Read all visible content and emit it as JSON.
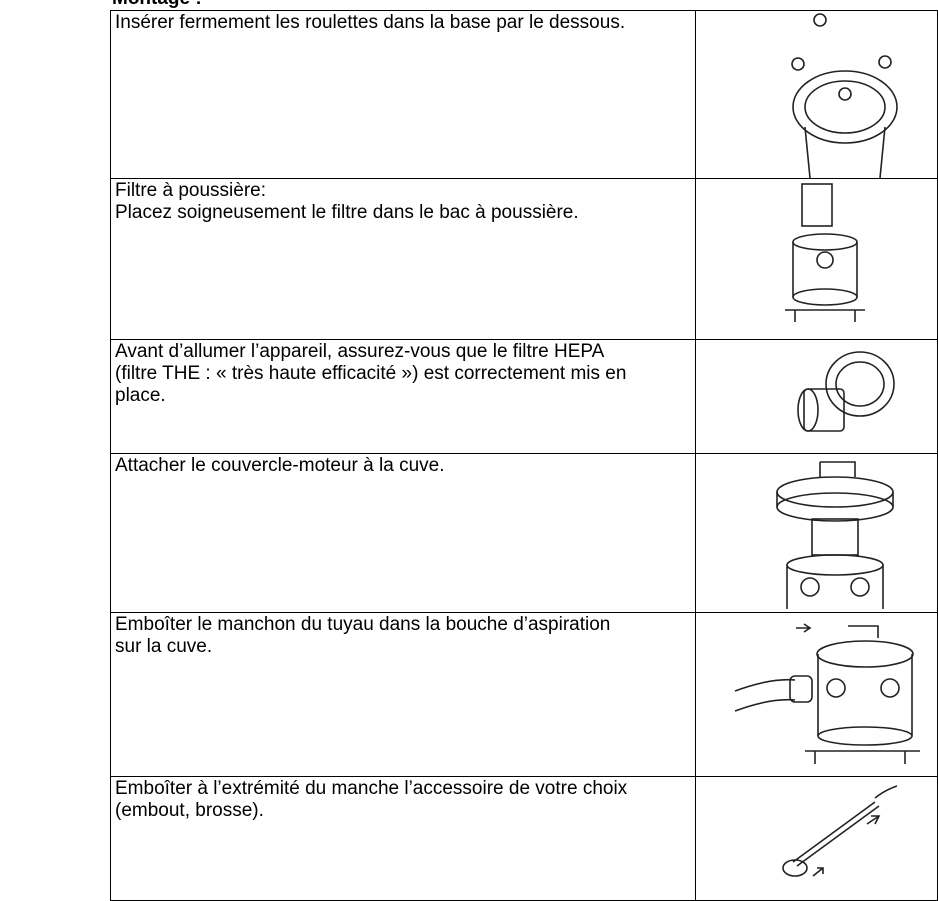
{
  "header": {
    "title": "Montage :"
  },
  "table": {
    "rows": [
      {
        "lines": [
          "Insérer fermement les roulettes dans la base par le dessous."
        ]
      },
      {
        "lines": [
          "Filtre à poussière:",
          "Placez soigneusement le filtre dans le bac à poussière."
        ]
      },
      {
        "lines": [
          "Avant d’allumer l’appareil, assurez-vous que le filtre HEPA",
          "(filtre THE : « très haute efficacité ») est correctement mis en",
          "place."
        ]
      },
      {
        "lines": [
          "Attacher le couvercle-moteur à la cuve."
        ]
      },
      {
        "lines": [
          "Emboîter le manchon du tuyau dans la bouche d’aspiration",
          "sur la cuve."
        ]
      },
      {
        "lines": [
          "Emboîter à l’extrémité du manche l’accessoire de votre choix",
          "(embout, brosse)."
        ]
      }
    ]
  }
}
